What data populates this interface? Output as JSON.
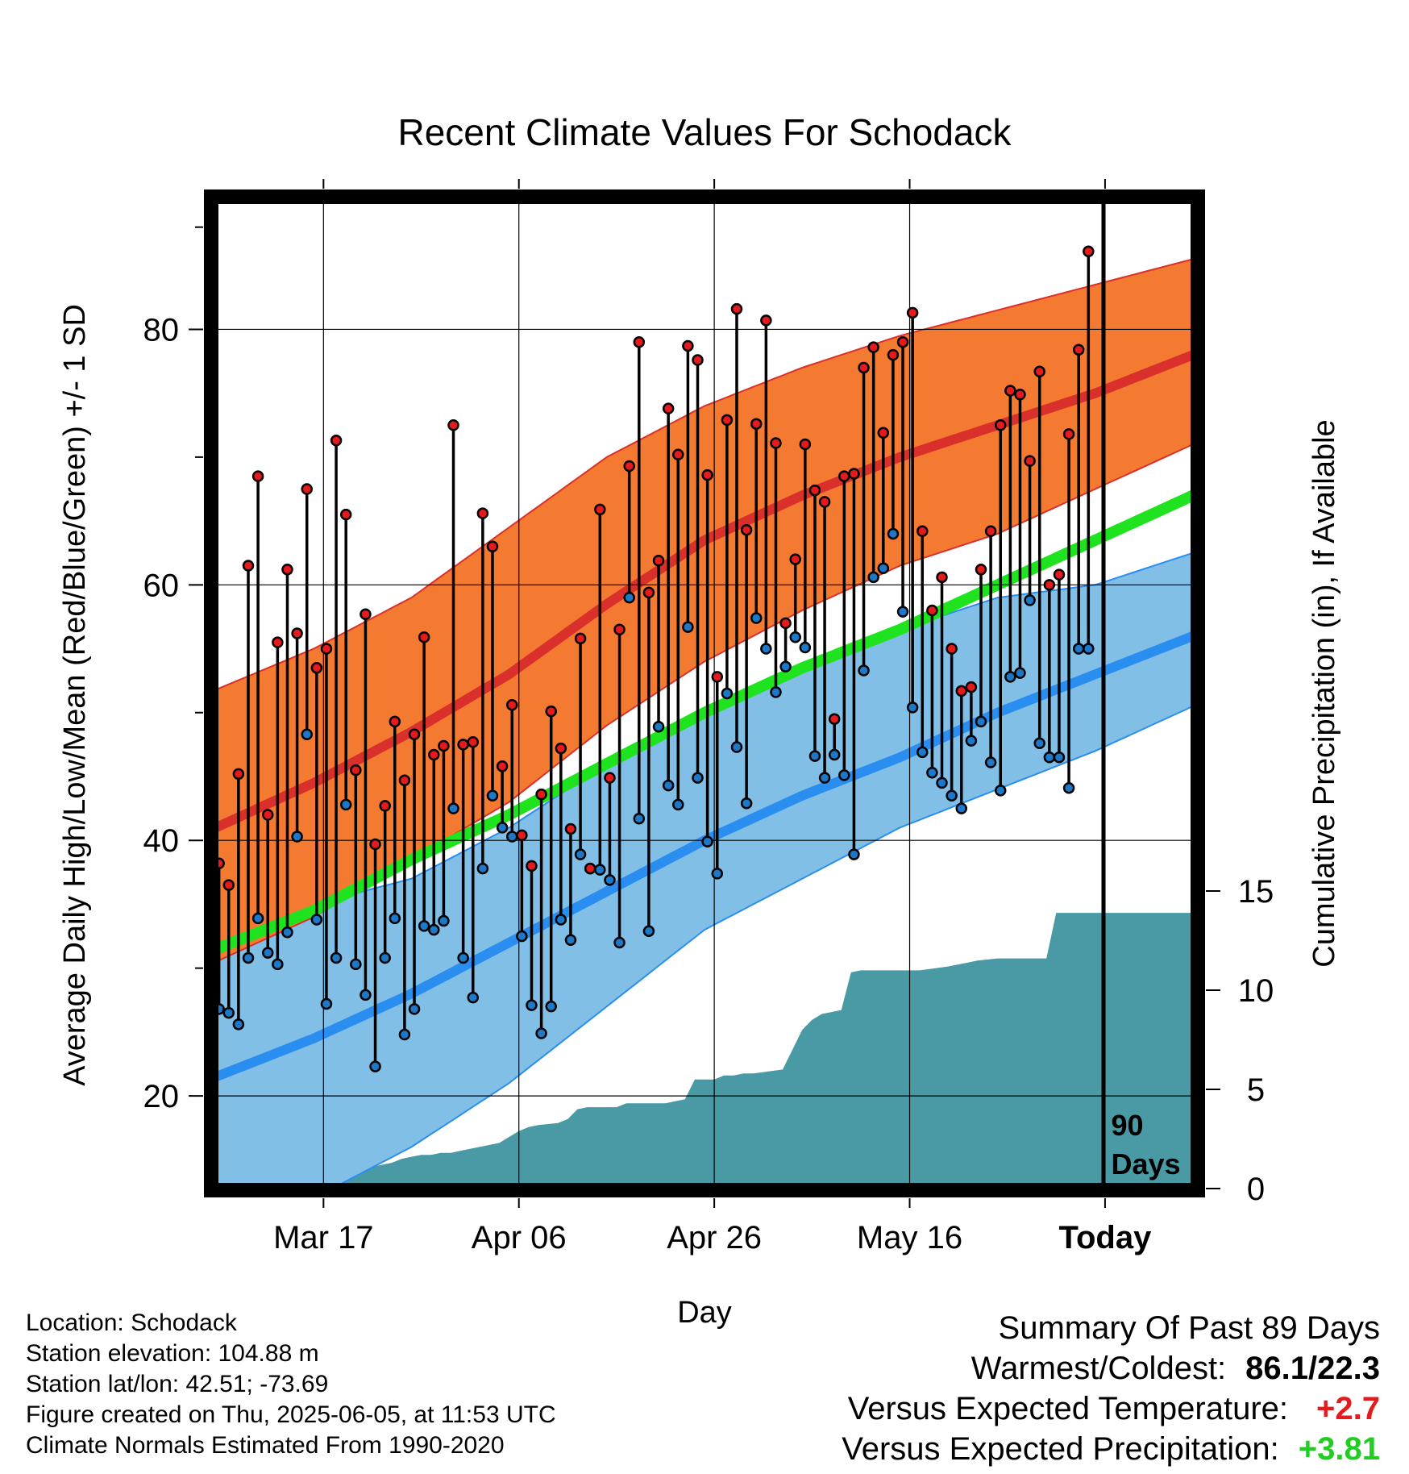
{
  "chart_data": {
    "type": "line",
    "title": "Recent Climate Values For Schodack",
    "xlabel": "Day",
    "ylabel": "Average Daily High/Low/Mean (Red/Blue/Green) +/- 1 SD",
    "ylabel2": "Cumulative Precipitation (in), If Available",
    "x_range_days": [
      0,
      100
    ],
    "x_ticks": [
      {
        "day": 11,
        "label": "Mar 17"
      },
      {
        "day": 31,
        "label": "Apr 06"
      },
      {
        "day": 51,
        "label": "Apr 26"
      },
      {
        "day": 71,
        "label": "May 16"
      },
      {
        "day": 91,
        "label": "Today"
      }
    ],
    "ylim": [
      13,
      90
    ],
    "y_ticks": [
      20,
      40,
      60,
      80
    ],
    "y_minor_ticks": [
      30,
      50,
      70,
      88
    ],
    "y2_ticks": [
      0,
      5,
      10,
      15
    ],
    "today_marker": {
      "day": 90.8,
      "label_line1": "90",
      "label_line2": "Days"
    },
    "grid": true,
    "normals": {
      "days": [
        0,
        10,
        20,
        30,
        40,
        50,
        60,
        70,
        80,
        90,
        100
      ],
      "high_mean": [
        41.0,
        44.5,
        48.5,
        53.0,
        58.5,
        63.5,
        67.0,
        70.0,
        72.5,
        75.0,
        78.0
      ],
      "high_plus_sd": [
        51.8,
        55.0,
        59.0,
        64.5,
        70.0,
        74.0,
        77.0,
        79.5,
        81.5,
        83.5,
        85.5
      ],
      "high_minus_sd": [
        30.5,
        34.0,
        38.5,
        43.0,
        49.0,
        54.0,
        58.0,
        61.5,
        64.0,
        67.5,
        71.0
      ],
      "mean": [
        31.5,
        34.5,
        38.5,
        42.0,
        46.0,
        50.0,
        53.5,
        56.5,
        60.0,
        63.5,
        67.0
      ],
      "low_mean": [
        21.5,
        24.5,
        28.0,
        32.0,
        36.0,
        40.0,
        43.5,
        46.5,
        50.0,
        53.0,
        56.0
      ],
      "low_plus_sd": [
        32.0,
        35.0,
        37.0,
        41.0,
        46.0,
        50.0,
        53.5,
        56.5,
        59.0,
        60.0,
        62.5
      ],
      "low_minus_sd": [
        11.0,
        12.0,
        16.0,
        21.0,
        27.0,
        33.0,
        37.0,
        41.0,
        44.0,
        47.0,
        50.5
      ]
    },
    "series": [
      {
        "name": "Daily High",
        "color": "#e41a1c",
        "values": [
          38.2,
          36.5,
          45.2,
          61.5,
          68.5,
          42.0,
          55.5,
          61.2,
          56.2,
          67.5,
          53.5,
          55.0,
          71.3,
          65.5,
          45.5,
          57.7,
          39.7,
          42.7,
          49.3,
          44.7,
          48.3,
          55.9,
          46.7,
          47.4,
          72.5,
          47.5,
          47.7,
          65.6,
          63.0,
          45.8,
          50.6,
          40.4,
          38.0,
          43.6,
          50.1,
          47.2,
          40.9,
          55.8,
          37.8,
          65.9,
          44.9,
          56.5,
          69.3,
          79.0,
          59.4,
          61.9,
          73.8,
          70.2,
          78.7,
          77.6,
          68.6,
          52.8,
          72.9,
          81.6,
          64.3,
          72.6,
          80.7,
          71.1,
          57.0,
          62.0,
          71.0,
          67.4,
          66.5,
          49.5,
          68.5,
          68.7,
          77.0,
          78.6,
          71.9,
          78.0,
          79.0,
          81.3,
          64.2,
          58.0,
          60.6,
          55.0,
          51.7,
          52.0,
          61.2,
          64.2,
          72.5,
          75.2,
          74.9,
          69.7,
          76.7,
          60.0,
          60.8,
          71.8,
          78.4,
          86.1
        ]
      },
      {
        "name": "Daily Low",
        "color": "#1e78c8",
        "values": [
          26.8,
          26.5,
          25.6,
          30.8,
          33.9,
          31.2,
          30.3,
          32.8,
          40.3,
          48.3,
          33.8,
          27.2,
          30.8,
          42.8,
          30.3,
          27.9,
          22.3,
          30.8,
          33.9,
          24.8,
          26.8,
          33.3,
          33.0,
          33.7,
          42.5,
          30.8,
          27.7,
          37.8,
          43.5,
          41.0,
          40.3,
          32.5,
          27.1,
          24.9,
          27.0,
          33.8,
          32.2,
          38.9,
          37.8,
          37.7,
          36.9,
          32.0,
          59.0,
          41.7,
          32.9,
          48.9,
          44.3,
          42.8,
          56.7,
          44.9,
          39.9,
          37.4,
          51.5,
          47.3,
          42.9,
          57.4,
          55.0,
          51.6,
          53.6,
          55.9,
          55.1,
          46.6,
          44.9,
          46.7,
          45.1,
          38.9,
          53.3,
          60.6,
          61.3,
          64.0,
          57.9,
          50.4,
          46.9,
          45.3,
          44.5,
          43.5,
          42.5,
          47.8,
          49.3,
          46.1,
          43.9,
          52.8,
          53.1,
          58.8,
          47.6,
          46.5,
          46.5,
          44.1,
          55.0,
          55.0
        ]
      },
      {
        "name": "Cumulative Precipitation",
        "color": "#4a9aa5",
        "start_day": 10,
        "days": [
          10,
          11,
          13,
          14,
          15,
          17,
          18,
          19,
          20,
          21,
          22,
          23,
          24,
          25,
          26,
          28,
          29,
          30,
          31,
          32,
          33,
          35,
          36,
          37,
          38,
          41,
          42,
          46,
          47,
          48,
          49,
          51,
          52,
          53,
          54,
          55,
          58,
          60,
          61,
          62,
          63,
          64,
          65,
          66,
          68,
          72,
          75,
          77,
          78,
          80,
          85,
          86,
          100
        ],
        "values": [
          0.0,
          0.4,
          0.4,
          0.7,
          1.0,
          1.2,
          1.3,
          1.5,
          1.6,
          1.7,
          1.7,
          1.8,
          1.8,
          1.9,
          2.0,
          2.2,
          2.3,
          2.6,
          2.9,
          3.1,
          3.2,
          3.3,
          3.5,
          4.0,
          4.1,
          4.1,
          4.3,
          4.3,
          4.4,
          4.5,
          5.5,
          5.5,
          5.7,
          5.7,
          5.8,
          5.8,
          6.0,
          8.0,
          8.5,
          8.8,
          8.9,
          9.0,
          10.9,
          11.0,
          11.0,
          11.0,
          11.2,
          11.4,
          11.5,
          11.6,
          11.6,
          13.9,
          13.9
        ]
      }
    ]
  },
  "footer": {
    "location": "Location: Schodack",
    "elevation": "Station elevation: 104.88 m",
    "latlon": "Station lat/lon: 42.51; -73.69",
    "created": "Figure created on Thu, 2025-06-05, at 11:53 UTC",
    "normals": "Climate Normals Estimated From 1990-2020"
  },
  "summary": {
    "title": "Summary Of Past 89 Days",
    "warm_cold_label": "Warmest/Coldest:",
    "warm_cold_value": "86.1/22.3",
    "temp_label": "Versus Expected Temperature:",
    "temp_value": "+2.7",
    "temp_color": "#e41a1c",
    "precip_label": "Versus Expected Precipitation:",
    "precip_value": "+3.81",
    "precip_color": "#22cc22"
  },
  "colors": {
    "high_band": "#f47a32",
    "high_line": "#d9302c",
    "low_band": "#82bfe6",
    "low_line": "#2a8ef0",
    "mean_line": "#1ee31e",
    "precip_fill": "#4a9aa5"
  }
}
